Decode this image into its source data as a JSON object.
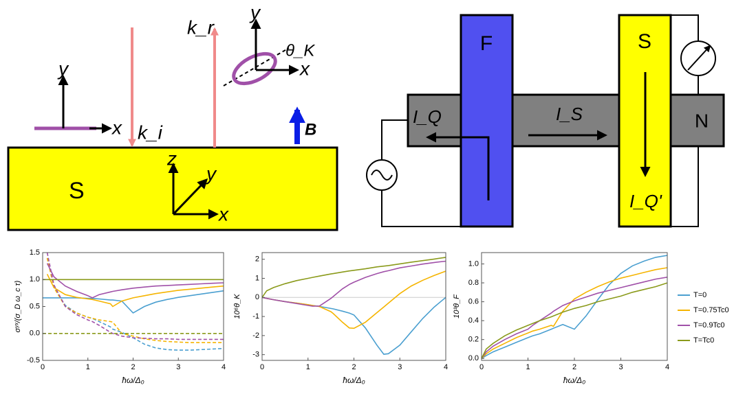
{
  "diagram_left": {
    "substrate": "S",
    "axis_y": "y",
    "axis_x": "x",
    "k_i": "k_i",
    "k_r": "k_r",
    "z": "z",
    "y2": "y",
    "x2": "x",
    "y3": "y",
    "x3": "x",
    "theta": "θ_K",
    "field": "B"
  },
  "diagram_right": {
    "ferromagnet": "F",
    "superconductor": "S",
    "normal": "N",
    "current_q": "I_Q",
    "current_s": "I_S",
    "current_q2": "I_Q'"
  },
  "chart_data": [
    {
      "type": "line",
      "xlabel": "ħω/Δ₀",
      "ylabel": "σʸˣ/(σ_D ω_c τ)",
      "xlim": [
        0,
        4
      ],
      "xticks": [
        0,
        1,
        2,
        3,
        4
      ],
      "ylim": [
        -0.5,
        1.5
      ],
      "yticks": [
        -0.5,
        {
          "value": 0,
          "label": "0.0"
        },
        0.5,
        {
          "value": 1,
          "label": "1.0"
        },
        1.5
      ],
      "x": [
        0,
        0.1,
        0.25,
        0.5,
        0.75,
        1,
        1.1,
        1.25,
        1.5,
        1.55,
        1.75,
        2,
        2.25,
        2.5,
        2.75,
        3,
        3.25,
        3.5,
        3.75,
        4
      ],
      "series": [
        {
          "color": "#4a9fd0",
          "values": [
            0.66,
            0.66,
            0.66,
            0.66,
            0.66,
            0.65,
            0.65,
            0.64,
            0.62,
            0.62,
            0.6,
            0.38,
            0.5,
            0.58,
            0.63,
            0.67,
            0.7,
            0.73,
            0.76,
            0.79
          ],
          "dashed_values": [
            null,
            1.4,
            0.85,
            0.52,
            0.38,
            0.3,
            0.28,
            0.22,
            0.12,
            0.08,
            0.02,
            -0.08,
            -0.2,
            -0.27,
            -0.3,
            -0.31,
            -0.31,
            -0.3,
            -0.29,
            -0.28
          ]
        },
        {
          "color": "#f5b400",
          "values": [
            null,
            1.1,
            0.85,
            0.72,
            0.67,
            0.64,
            0.63,
            0.6,
            0.55,
            0.5,
            0.6,
            0.66,
            0.7,
            0.74,
            0.77,
            0.8,
            0.82,
            0.84,
            0.86,
            0.88
          ],
          "dashed_values": [
            null,
            1.4,
            0.85,
            0.5,
            0.38,
            0.3,
            0.28,
            0.25,
            0.22,
            0.21,
            0.0,
            -0.05,
            -0.1,
            -0.13,
            -0.15,
            -0.16,
            -0.17,
            -0.17,
            -0.17,
            -0.17
          ]
        },
        {
          "color": "#a050a8",
          "values": [
            null,
            1.3,
            1.05,
            0.88,
            0.78,
            0.7,
            0.66,
            0.72,
            0.77,
            0.78,
            0.81,
            0.84,
            0.86,
            0.88,
            0.89,
            0.9,
            0.91,
            0.92,
            0.93,
            0.94
          ],
          "dashed_values": [
            null,
            1.5,
            0.9,
            0.5,
            0.35,
            0.25,
            0.22,
            0.15,
            0.02,
            0.0,
            -0.05,
            -0.08,
            -0.09,
            -0.1,
            -0.1,
            -0.11,
            -0.11,
            -0.11,
            -0.11,
            -0.11
          ]
        },
        {
          "color": "#8a9a1a",
          "values": [
            1,
            1,
            1,
            1,
            1,
            1,
            1,
            1,
            1,
            1,
            1,
            1,
            1,
            1,
            1,
            1,
            1,
            1,
            1,
            1
          ],
          "dashed_values": [
            0,
            0,
            0,
            0,
            0,
            0,
            0,
            0,
            0,
            0,
            0,
            0,
            0,
            0,
            0,
            0,
            0,
            0,
            0,
            0
          ]
        }
      ]
    },
    {
      "type": "line",
      "xlabel": "ħω/Δ₀",
      "ylabel": "10⁶θ_K",
      "xlim": [
        0,
        4
      ],
      "xticks": [
        0,
        1,
        2,
        3,
        4
      ],
      "ylim": [
        -3.3,
        2.35
      ],
      "yticks": [
        -3,
        -2,
        -1,
        0,
        1,
        2
      ],
      "zero_line": true,
      "x": [
        0,
        0.1,
        0.25,
        0.5,
        0.75,
        1,
        1.1,
        1.25,
        1.5,
        1.55,
        1.75,
        1.9,
        2,
        2.25,
        2.5,
        2.65,
        2.75,
        3,
        3.25,
        3.5,
        3.75,
        4
      ],
      "series": [
        {
          "color": "#4a9fd0",
          "values": [
            0,
            -0.05,
            -0.12,
            -0.22,
            -0.3,
            -0.38,
            -0.42,
            -0.47,
            -0.58,
            -0.6,
            -0.72,
            -0.82,
            -0.92,
            -1.6,
            -2.5,
            -2.98,
            -2.95,
            -2.5,
            -1.8,
            -1.1,
            -0.5,
            0
          ]
        },
        {
          "color": "#f5b400",
          "values": [
            0,
            -0.05,
            -0.12,
            -0.22,
            -0.3,
            -0.38,
            -0.42,
            -0.48,
            -0.75,
            -0.85,
            -1.3,
            -1.6,
            -1.62,
            -1.3,
            -0.8,
            -0.5,
            -0.3,
            0.2,
            0.6,
            0.9,
            1.15,
            1.38
          ]
        },
        {
          "color": "#a050a8",
          "values": [
            0,
            -0.05,
            -0.12,
            -0.22,
            -0.32,
            -0.42,
            -0.46,
            -0.45,
            -0.05,
            0.05,
            0.45,
            0.68,
            0.8,
            1.05,
            1.25,
            1.35,
            1.4,
            1.55,
            1.65,
            1.75,
            1.83,
            1.9
          ]
        },
        {
          "color": "#8a9a1a",
          "values": [
            0,
            0.35,
            0.52,
            0.72,
            0.88,
            1.0,
            1.05,
            1.12,
            1.23,
            1.25,
            1.33,
            1.39,
            1.42,
            1.5,
            1.6,
            1.64,
            1.67,
            1.76,
            1.85,
            1.93,
            2.01,
            2.1
          ]
        }
      ]
    },
    {
      "type": "line",
      "xlabel": "ħω/Δ₀",
      "ylabel": "10³θ_F",
      "xlim": [
        0,
        4
      ],
      "xticks": [
        0,
        1,
        2,
        3,
        4
      ],
      "ylim": [
        -0.02,
        1.12
      ],
      "yticks": [
        {
          "value": 0,
          "label": "0.0"
        },
        0.2,
        0.4,
        0.6,
        0.8,
        {
          "value": 1,
          "label": "1.0"
        }
      ],
      "legend": "right",
      "x": [
        0,
        0.1,
        0.25,
        0.5,
        0.75,
        1,
        1.1,
        1.25,
        1.5,
        1.55,
        1.75,
        2,
        2.25,
        2.5,
        2.75,
        3,
        3.25,
        3.5,
        3.75,
        4
      ],
      "series": [
        {
          "name": "T=0",
          "color": "#4a9fd0",
          "values": [
            0,
            0.03,
            0.07,
            0.12,
            0.17,
            0.22,
            0.24,
            0.26,
            0.31,
            0.32,
            0.36,
            0.31,
            0.45,
            0.62,
            0.78,
            0.9,
            0.98,
            1.03,
            1.07,
            1.09
          ]
        },
        {
          "name": "T=0.75Tc0",
          "color": "#f5b400",
          "values": [
            0,
            0.05,
            0.1,
            0.16,
            0.22,
            0.27,
            0.29,
            0.31,
            0.35,
            0.34,
            0.5,
            0.63,
            0.7,
            0.76,
            0.81,
            0.85,
            0.88,
            0.91,
            0.94,
            0.96
          ]
        },
        {
          "name": "T=0.9Tc0",
          "color": "#a050a8",
          "values": [
            0,
            0.07,
            0.13,
            0.2,
            0.26,
            0.31,
            0.35,
            0.4,
            0.48,
            0.5,
            0.56,
            0.61,
            0.65,
            0.69,
            0.72,
            0.75,
            0.78,
            0.81,
            0.84,
            0.86
          ]
        },
        {
          "name": "T=Tc0",
          "color": "#8a9a1a",
          "values": [
            0,
            0.1,
            0.16,
            0.24,
            0.3,
            0.35,
            0.37,
            0.4,
            0.44,
            0.45,
            0.49,
            0.53,
            0.56,
            0.6,
            0.63,
            0.66,
            0.7,
            0.73,
            0.76,
            0.8
          ]
        }
      ]
    }
  ]
}
